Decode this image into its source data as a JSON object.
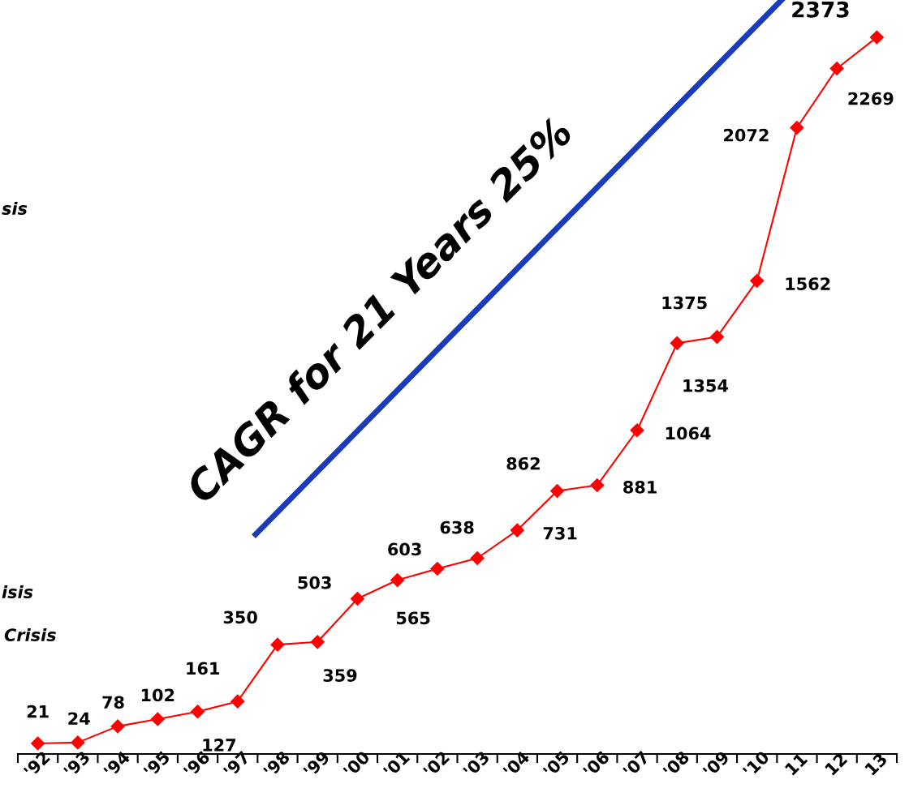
{
  "chart_data": {
    "type": "line",
    "categories": [
      "'92",
      "'93",
      "'94",
      "'95",
      "'96",
      "'97",
      "'98",
      "'99",
      "'00",
      "'01",
      "'02",
      "'03",
      "'04",
      "'05",
      "'06",
      "'07",
      "'08",
      "'09",
      "'10",
      "11",
      "12",
      "13"
    ],
    "series": [
      {
        "color": "#ff0000",
        "values": [
          21,
          24,
          78,
          102,
          127,
          161,
          350,
          359,
          503,
          565,
          603,
          638,
          731,
          862,
          881,
          1064,
          1354,
          1375,
          1562,
          2072,
          2269,
          2373
        ]
      }
    ],
    "data_labels": true,
    "marker": "diamond",
    "line_style": "solid",
    "grid": false,
    "legend": false,
    "tick_labels": "x",
    "annotations": [
      "CAGR for 21 Years 25%",
      "sis",
      "isis",
      "Crisis"
    ]
  }
}
